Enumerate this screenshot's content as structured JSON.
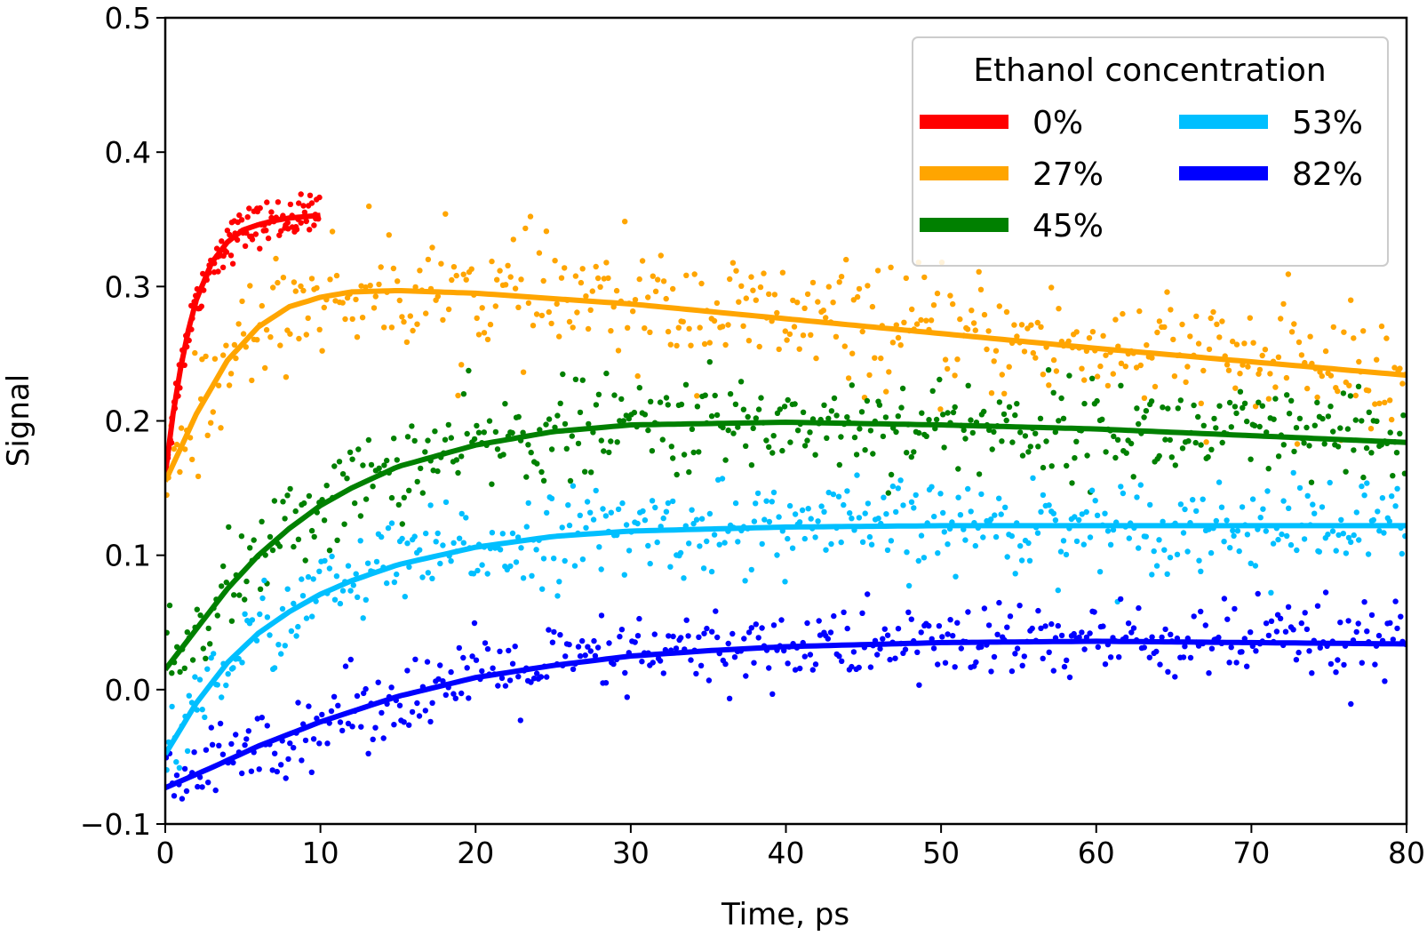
{
  "chart_data": {
    "type": "scatter",
    "title": "",
    "xlabel": "Time, ps",
    "ylabel": "Signal",
    "xlim": [
      0,
      80
    ],
    "ylim": [
      -0.1,
      0.5
    ],
    "xticks": [
      "0",
      "10",
      "20",
      "30",
      "40",
      "50",
      "60",
      "70",
      "80"
    ],
    "yticks": [
      "−0.1",
      "0.0",
      "0.1",
      "0.2",
      "0.3",
      "0.4",
      "0.5"
    ],
    "grid": false,
    "legend": {
      "title": "Ethanol concentration",
      "placement": "top-right",
      "columns": 2
    },
    "series": [
      {
        "name": "0%",
        "color": "#ff0000",
        "x_range": [
          0,
          10
        ],
        "fit": [
          [
            0,
            0.16
          ],
          [
            0.5,
            0.205
          ],
          [
            1,
            0.24
          ],
          [
            1.5,
            0.268
          ],
          [
            2,
            0.29
          ],
          [
            3,
            0.318
          ],
          [
            4,
            0.333
          ],
          [
            5,
            0.342
          ],
          [
            6,
            0.346
          ],
          [
            7,
            0.349
          ],
          [
            8,
            0.351
          ],
          [
            9,
            0.352
          ],
          [
            10,
            0.353
          ]
        ],
        "noise": 0.008
      },
      {
        "name": "27%",
        "color": "#ffa500",
        "x_range": [
          0,
          80
        ],
        "fit": [
          [
            0,
            0.155
          ],
          [
            2,
            0.205
          ],
          [
            4,
            0.245
          ],
          [
            6,
            0.27
          ],
          [
            8,
            0.285
          ],
          [
            10,
            0.292
          ],
          [
            12,
            0.296
          ],
          [
            15,
            0.297
          ],
          [
            20,
            0.295
          ],
          [
            30,
            0.287
          ],
          [
            40,
            0.276
          ],
          [
            50,
            0.265
          ],
          [
            60,
            0.254
          ],
          [
            70,
            0.244
          ],
          [
            80,
            0.234
          ]
        ],
        "noise": 0.022
      },
      {
        "name": "45%",
        "color": "#008000",
        "x_range": [
          0,
          80
        ],
        "fit": [
          [
            0,
            0.015
          ],
          [
            2,
            0.045
          ],
          [
            4,
            0.075
          ],
          [
            6,
            0.1
          ],
          [
            8,
            0.12
          ],
          [
            10,
            0.137
          ],
          [
            12,
            0.15
          ],
          [
            15,
            0.166
          ],
          [
            20,
            0.182
          ],
          [
            25,
            0.192
          ],
          [
            30,
            0.197
          ],
          [
            40,
            0.199
          ],
          [
            50,
            0.197
          ],
          [
            60,
            0.194
          ],
          [
            70,
            0.189
          ],
          [
            80,
            0.184
          ]
        ],
        "noise": 0.018
      },
      {
        "name": "53%",
        "color": "#00bfff",
        "x_range": [
          0,
          80
        ],
        "fit": [
          [
            0,
            -0.048
          ],
          [
            2,
            -0.01
          ],
          [
            4,
            0.02
          ],
          [
            6,
            0.042
          ],
          [
            8,
            0.058
          ],
          [
            10,
            0.071
          ],
          [
            12,
            0.081
          ],
          [
            15,
            0.093
          ],
          [
            20,
            0.106
          ],
          [
            25,
            0.114
          ],
          [
            30,
            0.118
          ],
          [
            40,
            0.121
          ],
          [
            50,
            0.122
          ],
          [
            60,
            0.122
          ],
          [
            70,
            0.122
          ],
          [
            80,
            0.122
          ]
        ],
        "noise": 0.017
      },
      {
        "name": "82%",
        "color": "#0000ff",
        "x_range": [
          0,
          80
        ],
        "fit": [
          [
            0,
            -0.073
          ],
          [
            3,
            -0.058
          ],
          [
            6,
            -0.042
          ],
          [
            10,
            -0.024
          ],
          [
            15,
            -0.005
          ],
          [
            20,
            0.009
          ],
          [
            25,
            0.018
          ],
          [
            30,
            0.025
          ],
          [
            35,
            0.029
          ],
          [
            40,
            0.032
          ],
          [
            50,
            0.035
          ],
          [
            60,
            0.036
          ],
          [
            70,
            0.035
          ],
          [
            80,
            0.034
          ]
        ],
        "noise": 0.015
      }
    ]
  }
}
